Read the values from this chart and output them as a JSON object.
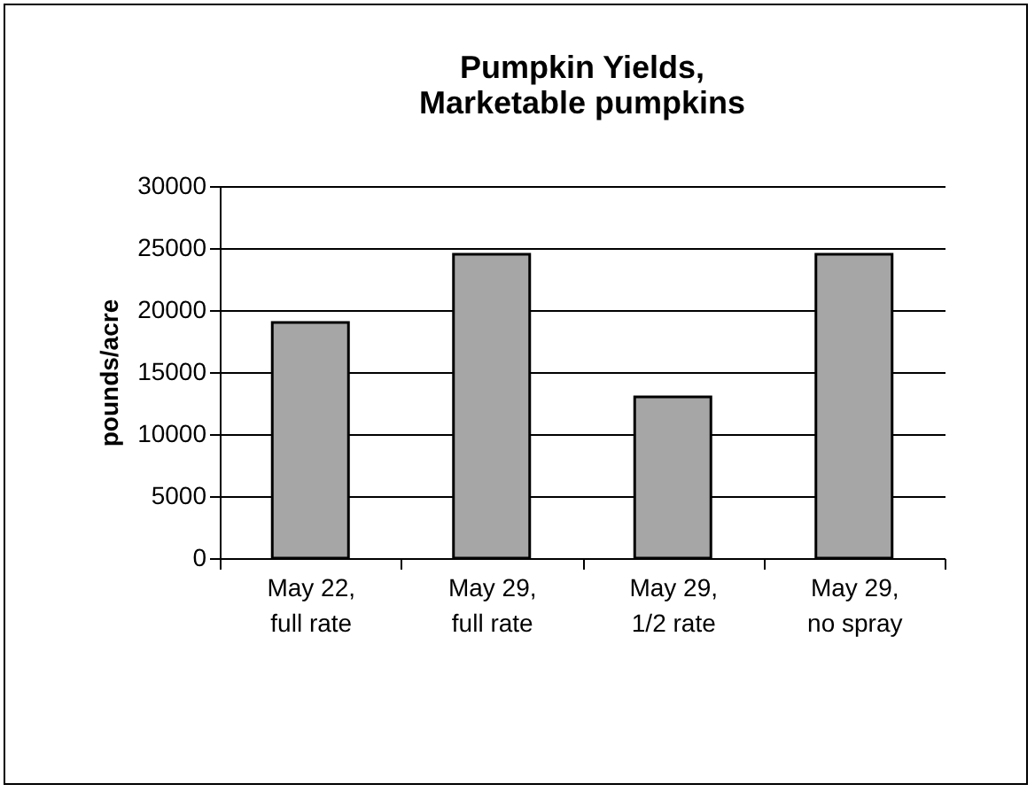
{
  "chart_data": {
    "type": "bar",
    "title": "Pumpkin Yields, Marketable pumpkins",
    "ylabel": "pounds/acre",
    "categories": [
      "May 22, full rate",
      "May 29, full rate",
      "May 29, 1/2 rate",
      "May 29, no spray"
    ],
    "values": [
      19000,
      24500,
      13000,
      24500
    ],
    "color": "#a6a6a6",
    "ylim": [
      0,
      30000
    ],
    "yticks": [
      0,
      5000,
      10000,
      15000,
      20000,
      25000,
      30000
    ],
    "grid": "y"
  }
}
